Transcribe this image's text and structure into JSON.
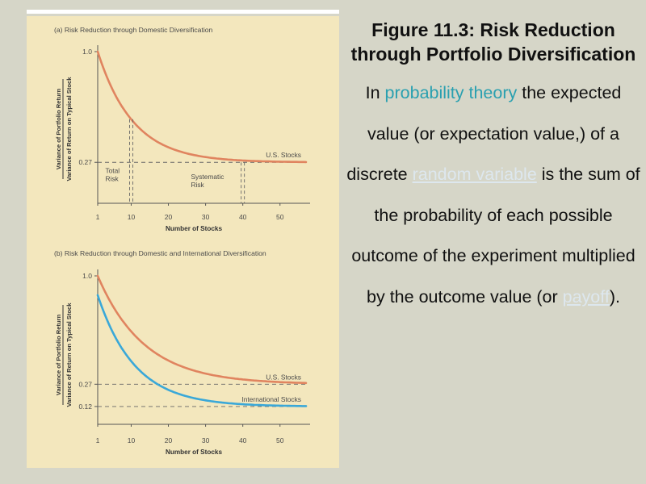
{
  "figure": {
    "title": "Figure 11.3: Risk Reduction through Portfolio Diversification",
    "body": [
      {
        "text": "In ",
        "style": "plain"
      },
      {
        "text": "probability theory",
        "style": "teal-link"
      },
      {
        "text": " the expected value (or expectation value,) of a discrete ",
        "style": "plain"
      },
      {
        "text": "random variable",
        "style": "faded-link"
      },
      {
        "text": " is the sum of the probability of each possible outcome of the experiment multiplied by the outcome value (or ",
        "style": "plain"
      },
      {
        "text": "payoff",
        "style": "faded-link"
      },
      {
        "text": ").",
        "style": "plain"
      }
    ]
  },
  "colors": {
    "us_curve": "#e0845f",
    "intl_curve": "#3aa8d8",
    "panel_bg": "#f3e7bd",
    "teal_link": "#2aa0b0"
  },
  "chart_data": [
    {
      "type": "line",
      "title": "(a) Risk Reduction through Domestic Diversification",
      "xlabel": "Number of Stocks",
      "ylabel": [
        "Variance of Portfolio Return",
        "Variance of Return on Typical Stock"
      ],
      "xlim": [
        1,
        57
      ],
      "ylim": [
        0,
        1.0
      ],
      "xticks": [
        1,
        10,
        20,
        30,
        40,
        50
      ],
      "yticks": [
        {
          "value": 1.0,
          "label": "1.0"
        },
        {
          "value": 0.27,
          "label": "0.27"
        }
      ],
      "series": [
        {
          "name": "U.S. Stocks",
          "color_key": "us_curve",
          "floor": 0.27,
          "rate": 0.105,
          "x": [
            1,
            5,
            10,
            15,
            20,
            25,
            30,
            35,
            40,
            45,
            50,
            57
          ],
          "y": [
            1.0,
            0.76,
            0.56,
            0.45,
            0.38,
            0.337,
            0.31,
            0.293,
            0.283,
            0.277,
            0.274,
            0.272
          ]
        }
      ],
      "reference_lines": [
        {
          "y": 0.27,
          "style": "dashed"
        }
      ],
      "markers": [
        {
          "x": 10,
          "style": "dashed"
        },
        {
          "x": 40,
          "style": "dashed"
        }
      ],
      "annotations": [
        {
          "lines": [
            "Total",
            "Risk"
          ],
          "x": 10,
          "y": 0.2
        },
        {
          "lines": [
            "Systematic",
            "Risk"
          ],
          "x": 38,
          "y": 0.16
        }
      ]
    },
    {
      "type": "line",
      "title": "(b) Risk Reduction through Domestic and International Diversification",
      "xlabel": "Number of Stocks",
      "ylabel": [
        "Variance of Portfolio Return",
        "Variance of Return on Typical Stock"
      ],
      "xlim": [
        1,
        57
      ],
      "ylim": [
        0,
        1.0
      ],
      "xticks": [
        1,
        10,
        20,
        30,
        40,
        50
      ],
      "yticks": [
        {
          "value": 1.0,
          "label": "1.0"
        },
        {
          "value": 0.27,
          "label": "0.27"
        },
        {
          "value": 0.12,
          "label": "0.12"
        }
      ],
      "series": [
        {
          "name": "U.S. Stocks",
          "color_key": "us_curve",
          "floor": 0.27,
          "rate": 0.08,
          "x": [
            1,
            5,
            10,
            15,
            20,
            25,
            30,
            35,
            40,
            45,
            50,
            57
          ],
          "y": [
            1.0,
            0.8,
            0.62,
            0.51,
            0.43,
            0.38,
            0.34,
            0.315,
            0.298,
            0.287,
            0.28,
            0.275
          ]
        },
        {
          "name": "International Stocks",
          "color_key": "intl_curve",
          "floor": 0.12,
          "rate": 0.1,
          "x": [
            1,
            5,
            10,
            15,
            20,
            25,
            30,
            35,
            40,
            45,
            50,
            57
          ],
          "y": [
            0.87,
            0.61,
            0.42,
            0.3,
            0.22,
            0.17,
            0.145,
            0.132,
            0.125,
            0.122,
            0.121,
            0.12
          ]
        }
      ],
      "reference_lines": [
        {
          "y": 0.27,
          "style": "dashed"
        },
        {
          "y": 0.12,
          "style": "dashed"
        }
      ]
    }
  ]
}
